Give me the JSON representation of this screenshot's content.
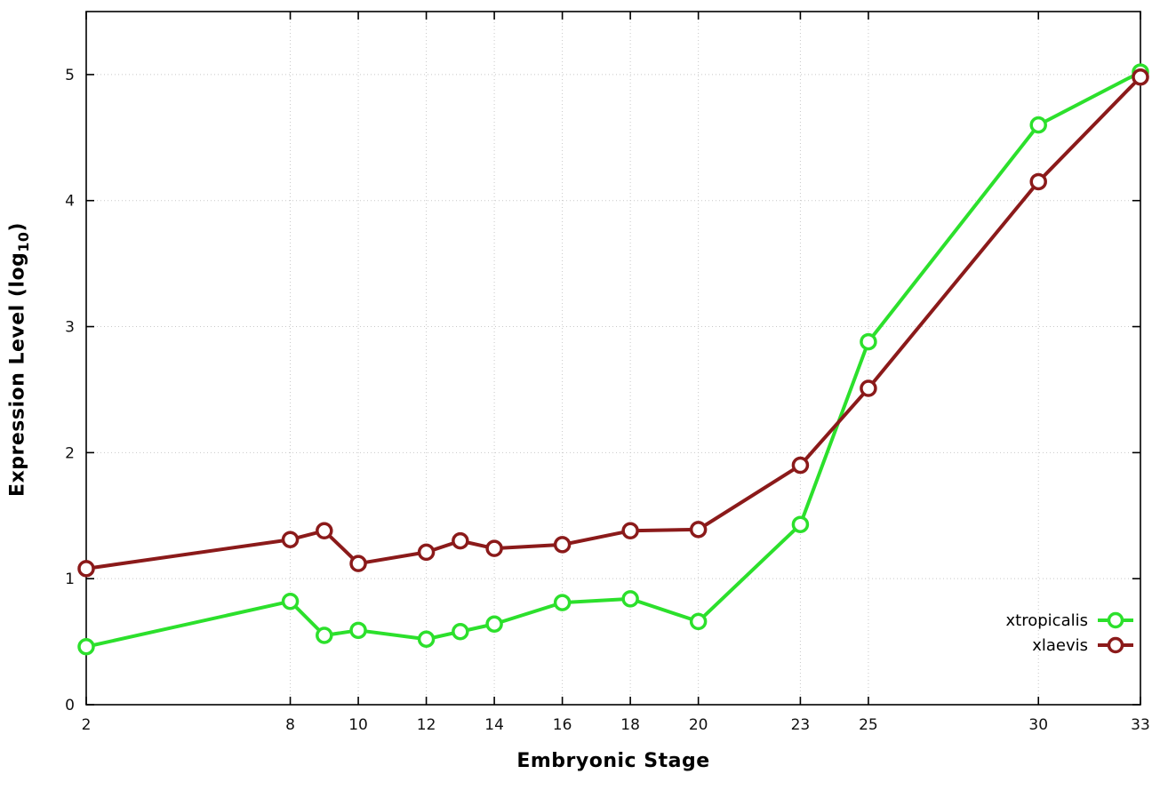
{
  "chart_data": {
    "type": "line",
    "x": [
      2,
      8,
      9,
      10,
      12,
      13,
      14,
      16,
      18,
      20,
      23,
      25,
      30,
      33
    ],
    "series": [
      {
        "name": "xtropicalis",
        "color": "#2ce02c",
        "values": [
          0.46,
          0.82,
          0.55,
          0.59,
          0.52,
          0.58,
          0.64,
          0.81,
          0.84,
          0.66,
          1.43,
          2.88,
          4.6,
          5.02
        ]
      },
      {
        "name": "xlaevis",
        "color": "#8b1a1a",
        "values": [
          1.08,
          1.31,
          1.38,
          1.12,
          1.21,
          1.3,
          1.24,
          1.27,
          1.38,
          1.39,
          1.9,
          2.51,
          4.15,
          4.98
        ]
      }
    ],
    "title": "",
    "xlabel": "Embryonic Stage",
    "ylabel": "Expression Level (log10)",
    "ylabel_parts": {
      "text": "Expression Level (log",
      "sub": "10",
      "close": ")"
    },
    "xlim": [
      2,
      33
    ],
    "ylim": [
      0,
      5.5
    ],
    "xticks": [
      2,
      8,
      10,
      12,
      14,
      16,
      18,
      20,
      23,
      25,
      30,
      33
    ],
    "yticks": [
      0,
      1,
      2,
      3,
      4,
      5
    ],
    "grid": true,
    "grid_color": "#c8c8c8",
    "border_color": "#000000",
    "legend_position": "right-inside",
    "marker": "open-circle"
  },
  "legend": {
    "items": [
      {
        "label": "xtropicalis",
        "color": "#2ce02c"
      },
      {
        "label": "xlaevis",
        "color": "#8b1a1a"
      }
    ]
  }
}
